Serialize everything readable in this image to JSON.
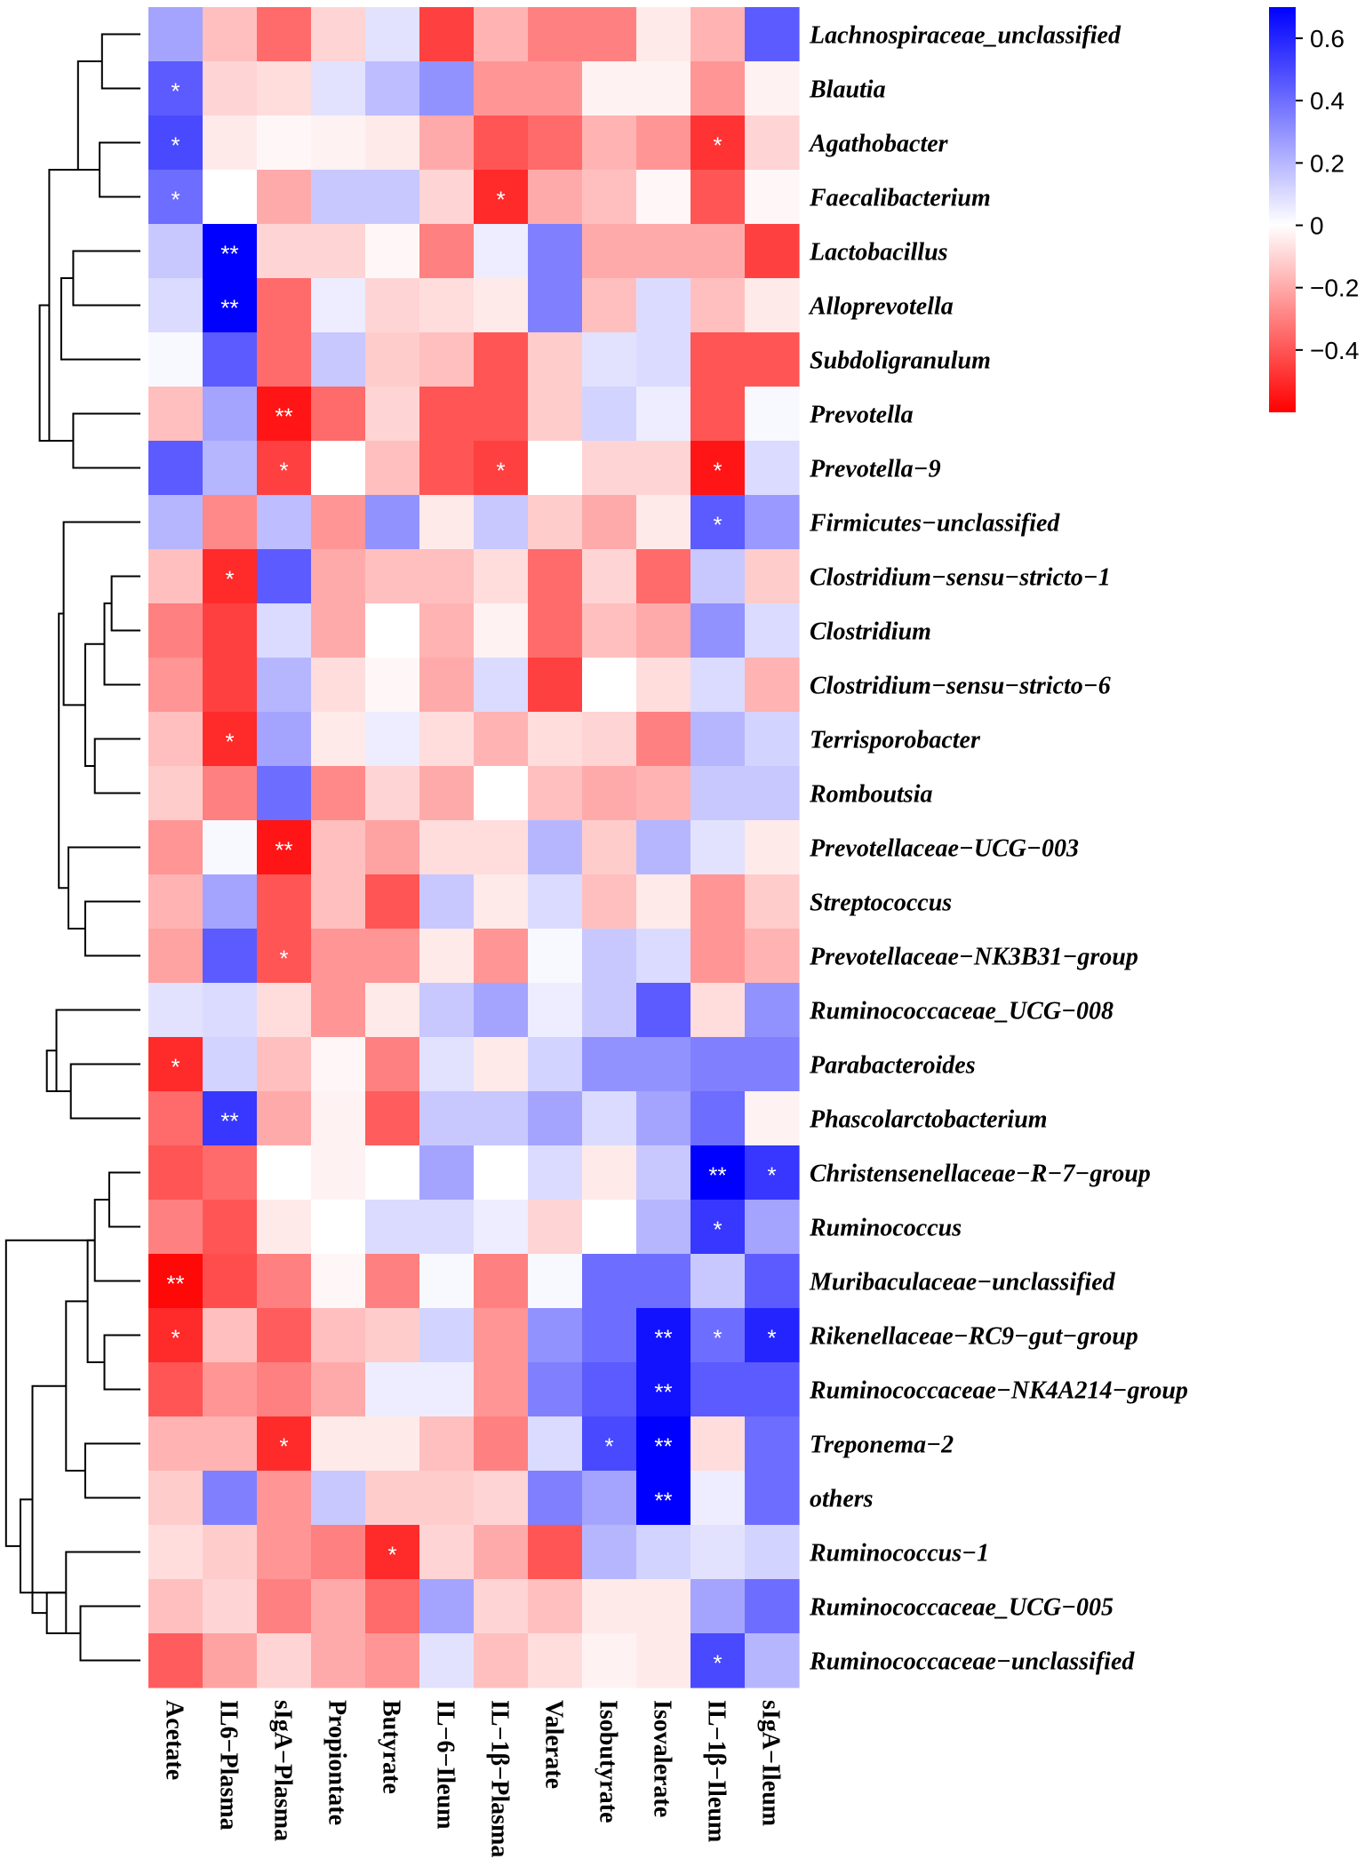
{
  "chart_data": {
    "type": "heatmap",
    "title": "",
    "columns": [
      "Acetate",
      "IL6−Plasma",
      "sIgA−Plasma",
      "Propiontate",
      "Butyrate",
      "IL−6−Ileum",
      "IL−1β−Plasma",
      "Valerate",
      "Isobutyrate",
      "Isovalerate",
      "IL−1β−Ileum",
      "sIgA−Ileum"
    ],
    "rows": [
      "Lachnospiraceae_unclassified",
      "Blautia",
      "Agathobacter",
      "Faecalibacterium",
      "Lactobacillus",
      "Alloprevotella",
      "Subdoligranulum",
      "Prevotella",
      "Prevotella−9",
      "Firmicutes−unclassified",
      "Clostridium−sensu−stricto−1",
      "Clostridium",
      "Clostridium−sensu−stricto−6",
      "Terrisporobacter",
      "Romboutsia",
      "Prevotellaceae−UCG−003",
      "Streptococcus",
      "Prevotellaceae−NK3B31−group",
      "Ruminococcaceae_UCG−008",
      "Parabacteroides",
      "Phascolarctobacterium",
      "Christensenellaceae−R−7−group",
      "Ruminococcus",
      "Muribaculaceae−unclassified",
      "Rikenellaceae−RC9−gut−group",
      "Ruminococcaceae−NK4A214−group",
      "Treponema−2",
      "others",
      "Ruminococcus−1",
      "Ruminococcaceae_UCG−005",
      "Ruminococcaceae−unclassified"
    ],
    "values": [
      [
        0.25,
        -0.15,
        -0.35,
        -0.1,
        0.08,
        -0.45,
        -0.18,
        -0.3,
        -0.3,
        -0.05,
        -0.18,
        0.45
      ],
      [
        0.45,
        -0.1,
        -0.08,
        0.08,
        0.18,
        0.3,
        -0.25,
        -0.25,
        -0.03,
        -0.03,
        -0.25,
        -0.03
      ],
      [
        0.5,
        -0.05,
        -0.02,
        -0.03,
        -0.05,
        -0.2,
        -0.4,
        -0.35,
        -0.18,
        -0.25,
        -0.48,
        -0.1
      ],
      [
        0.4,
        0.0,
        -0.2,
        0.15,
        0.15,
        -0.1,
        -0.5,
        -0.2,
        -0.15,
        -0.02,
        -0.4,
        -0.02
      ],
      [
        0.15,
        0.7,
        -0.1,
        -0.1,
        -0.02,
        -0.3,
        0.05,
        0.35,
        -0.2,
        -0.2,
        -0.2,
        -0.45
      ],
      [
        0.1,
        0.7,
        -0.35,
        0.05,
        -0.1,
        -0.08,
        -0.05,
        0.35,
        -0.15,
        0.1,
        -0.15,
        -0.05
      ],
      [
        0.02,
        0.45,
        -0.35,
        0.15,
        -0.12,
        -0.15,
        -0.4,
        -0.12,
        0.08,
        0.1,
        -0.4,
        -0.4
      ],
      [
        -0.15,
        0.25,
        -0.55,
        -0.35,
        -0.1,
        -0.4,
        -0.4,
        -0.12,
        0.12,
        0.05,
        -0.4,
        0.02
      ],
      [
        0.45,
        0.2,
        -0.45,
        0.0,
        -0.15,
        -0.4,
        -0.45,
        0.0,
        -0.1,
        -0.1,
        -0.55,
        0.1
      ],
      [
        0.2,
        -0.28,
        0.18,
        -0.25,
        0.3,
        -0.05,
        0.15,
        -0.12,
        -0.2,
        -0.05,
        0.45,
        0.28
      ],
      [
        -0.15,
        -0.5,
        0.45,
        -0.2,
        -0.15,
        -0.15,
        -0.08,
        -0.35,
        -0.1,
        -0.35,
        0.15,
        -0.12
      ],
      [
        -0.3,
        -0.45,
        0.1,
        -0.2,
        0.0,
        -0.18,
        -0.03,
        -0.35,
        -0.15,
        -0.2,
        0.3,
        0.1
      ],
      [
        -0.25,
        -0.45,
        0.2,
        -0.08,
        -0.02,
        -0.2,
        0.1,
        -0.45,
        0.0,
        -0.08,
        0.1,
        -0.18
      ],
      [
        -0.15,
        -0.5,
        0.25,
        -0.05,
        0.05,
        -0.08,
        -0.18,
        -0.08,
        -0.1,
        -0.3,
        0.2,
        0.12
      ],
      [
        -0.12,
        -0.3,
        0.4,
        -0.28,
        -0.1,
        -0.2,
        0.0,
        -0.15,
        -0.2,
        -0.18,
        0.15,
        0.15
      ],
      [
        -0.25,
        0.02,
        -0.55,
        -0.15,
        -0.22,
        -0.08,
        -0.08,
        0.2,
        -0.12,
        0.2,
        0.08,
        -0.05
      ],
      [
        -0.18,
        0.25,
        -0.4,
        -0.15,
        -0.4,
        0.15,
        -0.05,
        0.1,
        -0.15,
        -0.05,
        -0.25,
        -0.12
      ],
      [
        -0.22,
        0.45,
        -0.4,
        -0.25,
        -0.25,
        -0.05,
        -0.25,
        0.02,
        0.15,
        0.1,
        -0.25,
        -0.18
      ],
      [
        0.08,
        0.1,
        -0.08,
        -0.25,
        -0.05,
        0.15,
        0.25,
        0.05,
        0.15,
        0.45,
        -0.08,
        0.3
      ],
      [
        -0.5,
        0.12,
        -0.15,
        -0.02,
        -0.3,
        0.08,
        -0.05,
        0.12,
        0.3,
        0.3,
        0.35,
        0.35
      ],
      [
        -0.35,
        0.55,
        -0.2,
        -0.03,
        -0.38,
        0.15,
        0.15,
        0.25,
        0.1,
        0.25,
        0.4,
        -0.03
      ],
      [
        -0.4,
        -0.35,
        0.0,
        -0.03,
        0.0,
        0.25,
        0.0,
        0.1,
        -0.05,
        0.15,
        0.7,
        0.55
      ],
      [
        -0.3,
        -0.4,
        -0.05,
        0.0,
        0.1,
        0.1,
        0.05,
        -0.1,
        0.0,
        0.2,
        0.55,
        0.25
      ],
      [
        -0.58,
        -0.42,
        -0.3,
        -0.02,
        -0.3,
        0.02,
        -0.3,
        0.02,
        0.4,
        0.4,
        0.15,
        0.45
      ],
      [
        -0.5,
        -0.15,
        -0.38,
        -0.15,
        -0.12,
        0.12,
        -0.25,
        0.3,
        0.4,
        0.65,
        0.4,
        0.6
      ],
      [
        -0.4,
        -0.25,
        -0.3,
        -0.2,
        0.05,
        0.05,
        -0.25,
        0.35,
        0.45,
        0.65,
        0.45,
        0.45
      ],
      [
        -0.18,
        -0.18,
        -0.5,
        -0.05,
        -0.05,
        -0.15,
        -0.3,
        0.1,
        0.5,
        0.7,
        -0.08,
        0.4
      ],
      [
        -0.12,
        0.35,
        -0.25,
        0.15,
        -0.12,
        -0.12,
        -0.1,
        0.35,
        0.25,
        0.7,
        0.05,
        0.4
      ],
      [
        -0.08,
        -0.12,
        -0.25,
        -0.3,
        -0.5,
        -0.1,
        -0.2,
        -0.4,
        0.2,
        0.12,
        0.08,
        0.12
      ],
      [
        -0.15,
        -0.1,
        -0.3,
        -0.2,
        -0.35,
        0.25,
        -0.1,
        -0.15,
        -0.05,
        -0.05,
        0.25,
        0.4
      ],
      [
        -0.38,
        -0.22,
        -0.1,
        -0.2,
        -0.25,
        0.08,
        -0.15,
        -0.08,
        -0.03,
        -0.05,
        0.5,
        0.2
      ]
    ],
    "significance": [
      [
        "",
        "",
        "",
        "",
        "",
        "",
        "",
        "",
        "",
        "",
        "",
        ""
      ],
      [
        "*",
        "",
        "",
        "",
        "",
        "",
        "",
        "",
        "",
        "",
        "",
        ""
      ],
      [
        "*",
        "",
        "",
        "",
        "",
        "",
        "",
        "",
        "",
        "",
        "*",
        ""
      ],
      [
        "*",
        "",
        "",
        "",
        "",
        "",
        "*",
        "",
        "",
        "",
        "",
        ""
      ],
      [
        "",
        "**",
        "",
        "",
        "",
        "",
        "",
        "",
        "",
        "",
        "",
        ""
      ],
      [
        "",
        "**",
        "",
        "",
        "",
        "",
        "",
        "",
        "",
        "",
        "",
        ""
      ],
      [
        "",
        "",
        "",
        "",
        "",
        "",
        "",
        "",
        "",
        "",
        "",
        ""
      ],
      [
        "",
        "",
        "**",
        "",
        "",
        "",
        "",
        "",
        "",
        "",
        "",
        ""
      ],
      [
        "",
        "",
        "*",
        "",
        "",
        "",
        "*",
        "",
        "",
        "",
        "*",
        ""
      ],
      [
        "",
        "",
        "",
        "",
        "",
        "",
        "",
        "",
        "",
        "",
        "*",
        ""
      ],
      [
        "",
        "*",
        "",
        "",
        "",
        "",
        "",
        "",
        "",
        "",
        "",
        ""
      ],
      [
        "",
        "",
        "",
        "",
        "",
        "",
        "",
        "",
        "",
        "",
        "",
        ""
      ],
      [
        "",
        "",
        "",
        "",
        "",
        "",
        "",
        "",
        "",
        "",
        "",
        ""
      ],
      [
        "",
        "*",
        "",
        "",
        "",
        "",
        "",
        "",
        "",
        "",
        "",
        ""
      ],
      [
        "",
        "",
        "",
        "",
        "",
        "",
        "",
        "",
        "",
        "",
        "",
        ""
      ],
      [
        "",
        "",
        "**",
        "",
        "",
        "",
        "",
        "",
        "",
        "",
        "",
        ""
      ],
      [
        "",
        "",
        "",
        "",
        "",
        "",
        "",
        "",
        "",
        "",
        "",
        ""
      ],
      [
        "",
        "",
        "*",
        "",
        "",
        "",
        "",
        "",
        "",
        "",
        "",
        ""
      ],
      [
        "",
        "",
        "",
        "",
        "",
        "",
        "",
        "",
        "",
        "",
        "",
        ""
      ],
      [
        "*",
        "",
        "",
        "",
        "",
        "",
        "",
        "",
        "",
        "",
        "",
        ""
      ],
      [
        "",
        "**",
        "",
        "",
        "",
        "",
        "",
        "",
        "",
        "",
        "",
        ""
      ],
      [
        "",
        "",
        "",
        "",
        "",
        "",
        "",
        "",
        "",
        "",
        "**",
        "*"
      ],
      [
        "",
        "",
        "",
        "",
        "",
        "",
        "",
        "",
        "",
        "",
        "*",
        ""
      ],
      [
        "**",
        "",
        "",
        "",
        "",
        "",
        "",
        "",
        "",
        "",
        "",
        ""
      ],
      [
        "*",
        "",
        "",
        "",
        "",
        "",
        "",
        "",
        "",
        "**",
        "*",
        "*"
      ],
      [
        "",
        "",
        "",
        "",
        "",
        "",
        "",
        "",
        "",
        "**",
        "",
        ""
      ],
      [
        "",
        "",
        "*",
        "",
        "",
        "",
        "",
        "",
        "*",
        "**",
        "",
        ""
      ],
      [
        "",
        "",
        "",
        "",
        "",
        "",
        "",
        "",
        "",
        "**",
        "",
        ""
      ],
      [
        "",
        "",
        "",
        "",
        "*",
        "",
        "",
        "",
        "",
        "",
        "",
        ""
      ],
      [
        "",
        "",
        "",
        "",
        "",
        "",
        "",
        "",
        "",
        "",
        "",
        ""
      ],
      [
        "",
        "",
        "",
        "",
        "",
        "",
        "",
        "",
        "",
        "",
        "*",
        ""
      ]
    ],
    "colorbar": {
      "min": -0.6,
      "max": 0.7,
      "ticks": [
        0.6,
        0.4,
        0.2,
        0,
        -0.2,
        -0.4
      ],
      "tick_labels": [
        "0.6",
        "0.4",
        "0.2",
        "0",
        "−0.2",
        "−0.4"
      ],
      "colors": {
        "low": "#ff0000",
        "mid": "#ffffff",
        "high": "#0000ff"
      }
    },
    "dendrogram": {
      "orientation": "left",
      "merges": [
        [
          0,
          1,
          1.6
        ],
        [
          2,
          3,
          1.7
        ],
        [
          -2,
          -1,
          2.6
        ],
        [
          4,
          5,
          2.8
        ],
        [
          -1,
          6,
          3.3
        ],
        [
          7,
          8,
          2.8
        ],
        [
          -1,
          -5,
          3.8
        ],
        [
          -1,
          -2,
          4.2
        ],
        [
          10,
          11,
          1.2
        ],
        [
          -1,
          12,
          1.5
        ],
        [
          13,
          14,
          1.9
        ],
        [
          -2,
          -1,
          2.3
        ],
        [
          9,
          -1,
          3.2
        ],
        [
          16,
          17,
          2.3
        ],
        [
          15,
          -1,
          3.0
        ],
        [
          -3,
          -1,
          3.4
        ],
        [
          19,
          20,
          2.9
        ],
        [
          18,
          -1,
          3.5
        ],
        [
          -2,
          -1,
          3.9
        ],
        [
          21,
          22,
          1.3
        ],
        [
          -1,
          23,
          1.9
        ],
        [
          24,
          25,
          1.5
        ],
        [
          -2,
          -1,
          2.2
        ],
        [
          26,
          27,
          2.3
        ],
        [
          -2,
          -1,
          3.1
        ],
        [
          29,
          30,
          2.5
        ],
        [
          28,
          -1,
          3.1
        ],
        [
          -2,
          -1,
          3.9
        ],
        [
          -4,
          -1,
          4.5
        ],
        [
          -3,
          -1,
          5.0
        ],
        [
          -10,
          -1,
          5.6
        ]
      ]
    }
  }
}
